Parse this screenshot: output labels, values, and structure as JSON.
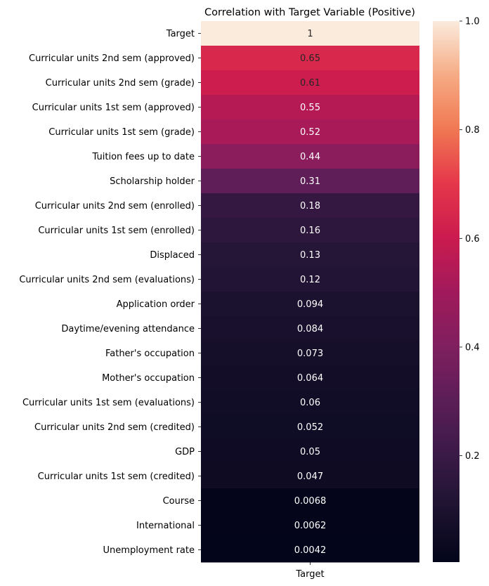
{
  "chart_data": {
    "type": "heatmap",
    "title": "Correlation with Target Variable (Positive)",
    "xlabel": "",
    "ylabel": "",
    "column_labels": [
      "Target"
    ],
    "row_labels": [
      "Target",
      "Curricular units 2nd sem (approved)",
      "Curricular units 2nd sem (grade)",
      "Curricular units 1st sem (approved)",
      "Curricular units 1st sem (grade)",
      "Tuition fees up to date",
      "Scholarship holder",
      "Curricular units 2nd sem (enrolled)",
      "Curricular units 1st sem (enrolled)",
      "Displaced",
      "Curricular units 2nd sem (evaluations)",
      "Application order",
      "Daytime/evening attendance",
      "Father's occupation",
      "Mother's occupation",
      "Curricular units 1st sem (evaluations)",
      "Curricular units 2nd sem (credited)",
      "GDP",
      "Curricular units 1st sem (credited)",
      "Course",
      "International",
      "Unemployment rate"
    ],
    "values": [
      1,
      0.65,
      0.61,
      0.55,
      0.52,
      0.44,
      0.31,
      0.18,
      0.16,
      0.13,
      0.12,
      0.094,
      0.084,
      0.073,
      0.064,
      0.06,
      0.052,
      0.05,
      0.047,
      0.0068,
      0.0062,
      0.0042
    ],
    "annotations": [
      "1",
      "0.65",
      "0.61",
      "0.55",
      "0.52",
      "0.44",
      "0.31",
      "0.18",
      "0.16",
      "0.13",
      "0.12",
      "0.094",
      "0.084",
      "0.073",
      "0.064",
      "0.06",
      "0.052",
      "0.05",
      "0.047",
      "0.0068",
      "0.0062",
      "0.0042"
    ],
    "colormap": "rocket",
    "vmin": 0.0042,
    "vmax": 1,
    "colorbar_ticks": [
      0.2,
      0.4,
      0.6,
      0.8,
      1.0
    ],
    "colorbar_tick_labels": [
      "0.2",
      "0.4",
      "0.6",
      "0.8",
      "1.0"
    ]
  }
}
